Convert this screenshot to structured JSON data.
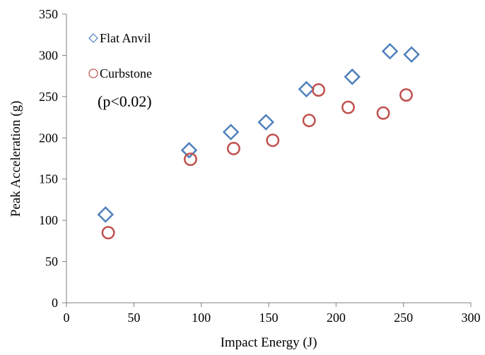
{
  "chart_data": {
    "type": "scatter",
    "xlabel": "Impact Energy (J)",
    "ylabel": "Peak Acceleration (g)",
    "xlim": [
      0,
      300
    ],
    "ylim": [
      0,
      350
    ],
    "x_ticks": [
      0,
      50,
      100,
      150,
      200,
      250,
      300
    ],
    "y_ticks": [
      0,
      50,
      100,
      150,
      200,
      250,
      300,
      350
    ],
    "grid": false,
    "legend_position": "top-left",
    "annotation": "(p<0.02)",
    "series": [
      {
        "name": "Flat Anvil",
        "marker": "diamond",
        "color": "#4f81bd",
        "points": [
          {
            "x": 29,
            "y": 107
          },
          {
            "x": 91,
            "y": 185
          },
          {
            "x": 122,
            "y": 207
          },
          {
            "x": 148,
            "y": 219
          },
          {
            "x": 178,
            "y": 259
          },
          {
            "x": 212,
            "y": 274
          },
          {
            "x": 240,
            "y": 305
          },
          {
            "x": 256,
            "y": 301
          }
        ]
      },
      {
        "name": "Curbstone",
        "marker": "circle",
        "color": "#c0504d",
        "points": [
          {
            "x": 31,
            "y": 85
          },
          {
            "x": 92,
            "y": 174
          },
          {
            "x": 124,
            "y": 187
          },
          {
            "x": 153,
            "y": 197
          },
          {
            "x": 180,
            "y": 221
          },
          {
            "x": 187,
            "y": 258
          },
          {
            "x": 209,
            "y": 237
          },
          {
            "x": 235,
            "y": 230
          },
          {
            "x": 252,
            "y": 252
          }
        ]
      }
    ]
  }
}
